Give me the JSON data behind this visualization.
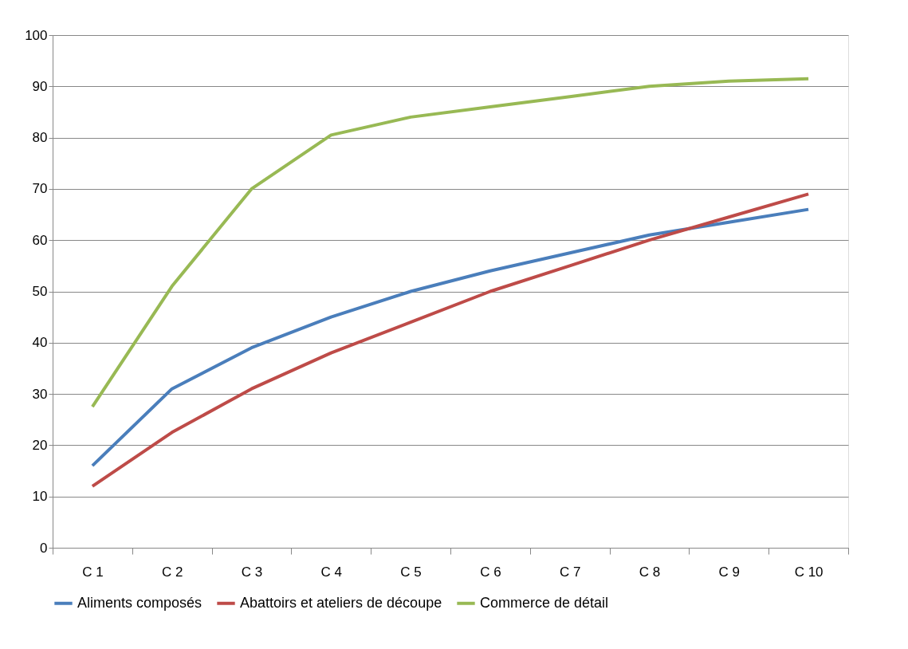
{
  "chart_data": {
    "type": "line",
    "categories": [
      "C 1",
      "C 2",
      "C 3",
      "C 4",
      "C 5",
      "C 6",
      "C 7",
      "C 8",
      "C 9",
      "C 10"
    ],
    "series": [
      {
        "name": "Aliments composés",
        "color": "#4a7ebb",
        "values": [
          16,
          31,
          39,
          45,
          50,
          54,
          57.5,
          61,
          63.5,
          66
        ]
      },
      {
        "name": "Abattoirs et ateliers de découpe",
        "color": "#be4b48",
        "values": [
          12,
          22.5,
          31,
          38,
          44,
          50,
          55,
          60,
          64.5,
          69
        ]
      },
      {
        "name": "Commerce de détail",
        "color": "#98b954",
        "values": [
          27.5,
          51,
          70,
          80.5,
          84,
          86,
          88,
          90,
          91,
          91.5
        ]
      }
    ],
    "ylim": [
      0,
      100
    ],
    "yticks": [
      0,
      10,
      20,
      30,
      40,
      50,
      60,
      70,
      80,
      90,
      100
    ],
    "grid": "y",
    "legend": "bottom",
    "marker": "none",
    "line_style": "solid"
  }
}
